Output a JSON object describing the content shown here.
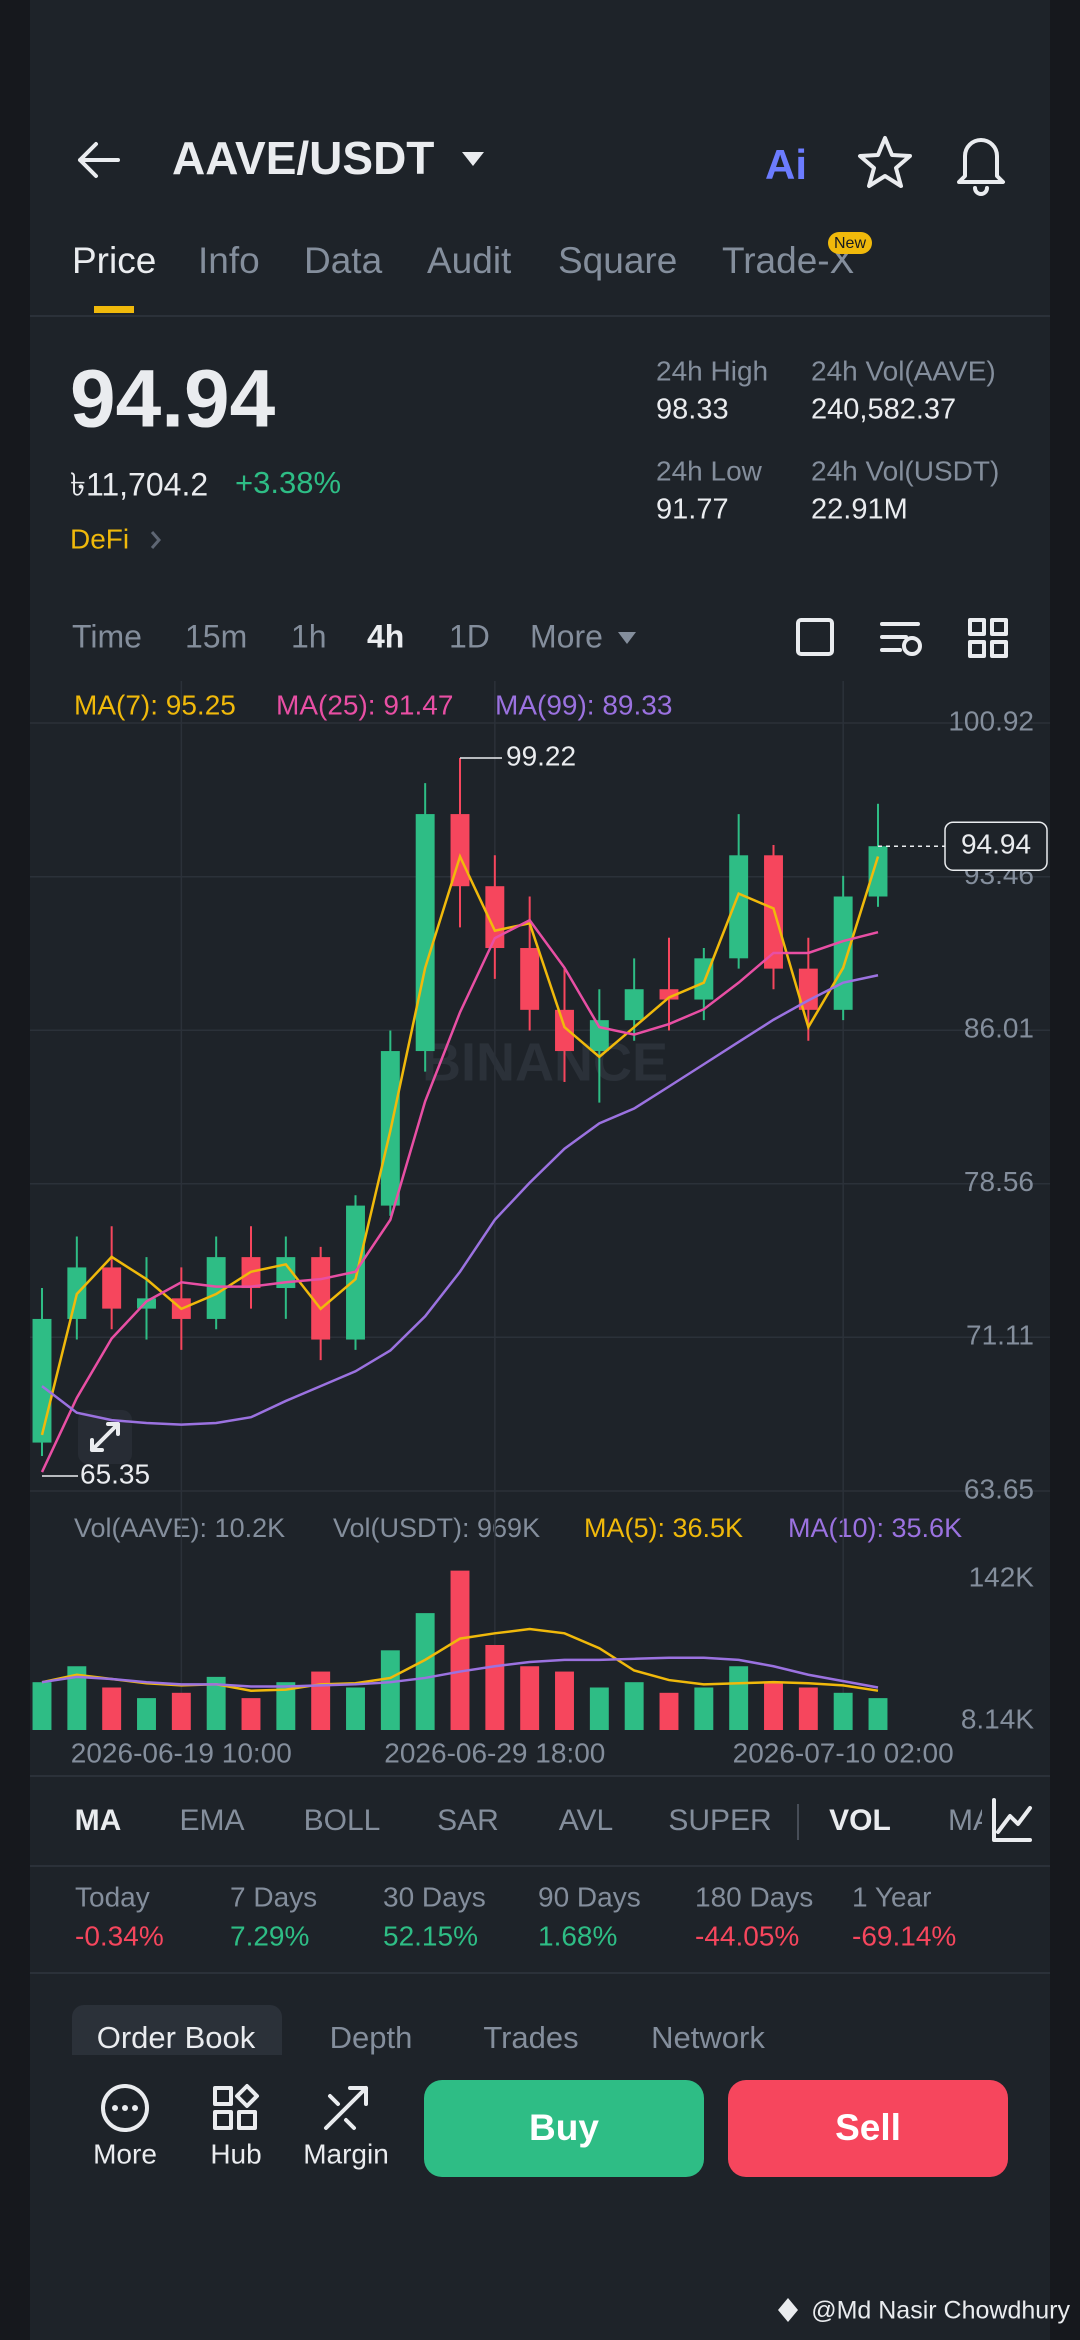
{
  "header": {
    "title": "AAVE/USDT",
    "ai_label": "Ai"
  },
  "tabs": [
    "Price",
    "Info",
    "Data",
    "Audit",
    "Square",
    "Trade-X"
  ],
  "new_badge": "New",
  "ticker": {
    "price": "94.94",
    "local_price": "৳11,704.2",
    "change": "+3.38%",
    "sector": "DeFi",
    "stats": [
      {
        "label": "24h High",
        "value": "98.33"
      },
      {
        "label": "24h Vol(AAVE)",
        "value": "240,582.37"
      },
      {
        "label": "24h Low",
        "value": "91.77"
      },
      {
        "label": "24h Vol(USDT)",
        "value": "22.91M"
      }
    ]
  },
  "intervals": [
    "Time",
    "15m",
    "1h",
    "4h",
    "1D",
    "More"
  ],
  "chart_data": {
    "type": "candlestick",
    "categories": [
      null,
      null,
      null,
      null,
      "2026-06-19 10:00",
      null,
      null,
      null,
      null,
      null,
      null,
      null,
      null,
      "2026-06-29 18:00",
      null,
      null,
      null,
      null,
      null,
      null,
      null,
      null,
      null,
      "2026-07-10 02:00",
      null
    ],
    "open": [
      66.0,
      72.0,
      74.5,
      72.5,
      73.0,
      72.0,
      75.0,
      73.5,
      75.0,
      71.0,
      77.5,
      85.0,
      96.5,
      93.0,
      90.0,
      87.0,
      85.0,
      86.5,
      88.0,
      87.5,
      89.5,
      94.5,
      89.0,
      87.0,
      92.5
    ],
    "high": [
      73.5,
      76.0,
      76.5,
      75.0,
      74.5,
      76.0,
      76.5,
      76.0,
      75.5,
      78.0,
      86.0,
      98.0,
      99.22,
      94.5,
      92.5,
      89.0,
      88.0,
      89.5,
      90.5,
      90.0,
      96.5,
      95.0,
      90.5,
      93.5,
      97.0
    ],
    "low": [
      65.35,
      71.0,
      71.5,
      71.0,
      70.5,
      71.5,
      72.5,
      72.0,
      70.0,
      70.5,
      77.0,
      84.0,
      91.0,
      88.5,
      86.0,
      83.5,
      82.5,
      85.5,
      86.0,
      86.5,
      89.0,
      88.0,
      85.5,
      86.5,
      92.0
    ],
    "close": [
      72.0,
      74.5,
      72.5,
      73.0,
      72.0,
      75.0,
      73.5,
      75.0,
      71.0,
      77.5,
      85.0,
      96.5,
      93.0,
      90.0,
      87.0,
      85.0,
      86.5,
      88.0,
      87.5,
      89.5,
      94.5,
      89.0,
      87.0,
      92.5,
      94.94
    ],
    "up_color": "#2ebd85",
    "down_color": "#f6465d",
    "series": [
      {
        "name": "MA(7): 95.25",
        "color": "#f0b90b",
        "values": [
          66.37,
          73.21,
          75.01,
          73.93,
          72.49,
          73.21,
          74.29,
          74.65,
          72.49,
          73.93,
          81.13,
          89.04,
          94.44,
          90.84,
          91.2,
          86.16,
          84.72,
          86.16,
          87.6,
          88.32,
          92.64,
          91.92,
          86.16,
          89.04,
          94.44
        ]
      },
      {
        "name": "MA(25): 91.47",
        "color": "#e84fa4",
        "values": [
          64.57,
          68.17,
          71.05,
          72.85,
          73.78,
          73.57,
          73.57,
          73.78,
          73.93,
          74.29,
          76.81,
          82.56,
          86.88,
          90.48,
          91.35,
          89.04,
          86.16,
          85.8,
          86.31,
          87.03,
          88.32,
          89.76,
          89.76,
          90.34,
          90.77
        ]
      },
      {
        "name": "MA(99): 89.33",
        "color": "#9b72e0",
        "values": [
          68.74,
          67.45,
          67.09,
          66.95,
          66.87,
          66.95,
          67.23,
          68.02,
          68.74,
          69.46,
          70.47,
          72.13,
          74.29,
          76.81,
          78.61,
          80.26,
          81.49,
          82.21,
          83.28,
          84.36,
          85.44,
          86.52,
          87.46,
          88.32,
          88.68
        ]
      }
    ],
    "ylim": [
      63.65,
      100.92
    ],
    "yticks": [
      100.92,
      93.46,
      86.01,
      78.56,
      71.11,
      63.65
    ],
    "grid": true,
    "watermark": "BINANCE",
    "volume": {
      "legend": [
        "Vol(AAVE): 10.2K",
        "Vol(USDT): 969K"
      ],
      "values": [
        45000,
        60000,
        40000,
        30000,
        35000,
        50000,
        30000,
        45000,
        55000,
        40000,
        75000,
        110000,
        150000,
        80000,
        60000,
        55000,
        40000,
        45000,
        35000,
        40000,
        60000,
        45000,
        40000,
        35000,
        30000
      ],
      "series": [
        {
          "name": "MA(5): 36.5K",
          "color": "#f0b90b",
          "values": [
            45000,
            52000,
            48000,
            44000,
            42000,
            43000,
            37000,
            38000,
            43000,
            44000,
            49000,
            66000,
            86000,
            91000,
            95000,
            91000,
            77000,
            56000,
            47000,
            43000,
            44000,
            45000,
            44000,
            42000,
            37000
          ]
        },
        {
          "name": "MA(10): 35.6K",
          "color": "#9b72e0",
          "values": [
            45000,
            50000,
            48000,
            45000,
            43000,
            43000,
            41000,
            41000,
            42000,
            43000,
            45000,
            49000,
            55000,
            60000,
            64000,
            66000,
            66000,
            67000,
            68000,
            68000,
            66000,
            60000,
            52000,
            46000,
            40000
          ]
        }
      ],
      "ylim": [
        0,
        160000
      ],
      "yticks": [
        {
          "value": 8140,
          "label": "8.14K"
        },
        {
          "value": 142000,
          "label": "142K"
        }
      ]
    }
  },
  "indicators": [
    "MA",
    "EMA",
    "BOLL",
    "SAR",
    "AVL",
    "SUPER",
    "VOL",
    "MA"
  ],
  "performance": [
    {
      "label": "Today",
      "value": "-0.34%"
    },
    {
      "label": "7 Days",
      "value": "7.29%"
    },
    {
      "label": "30 Days",
      "value": "52.15%"
    },
    {
      "label": "90 Days",
      "value": "1.68%"
    },
    {
      "label": "180 Days",
      "value": "-44.05%"
    },
    {
      "label": "1 Year",
      "value": "-69.14%"
    }
  ],
  "book_tabs": [
    "Order Book",
    "Depth",
    "Trades",
    "Network"
  ],
  "actions": [
    "More",
    "Hub",
    "Margin"
  ],
  "buy": "Buy",
  "sell": "Sell",
  "watermark": "@Md Nasir Chowdhury"
}
